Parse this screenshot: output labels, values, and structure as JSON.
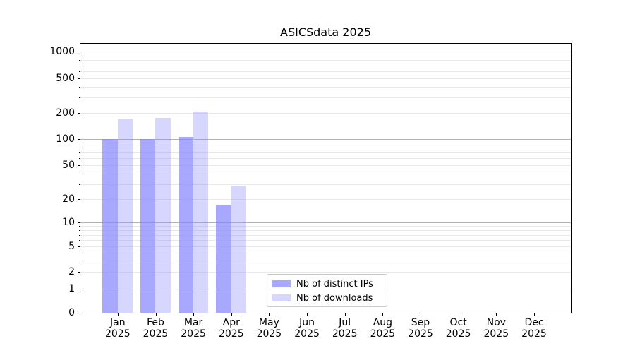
{
  "chart_data": {
    "type": "bar",
    "title": "ASICSdata 2025",
    "categories": [
      "Jan",
      "Feb",
      "Mar",
      "Apr",
      "May",
      "Jun",
      "Jul",
      "Aug",
      "Sep",
      "Oct",
      "Nov",
      "Dec"
    ],
    "x_year_label": "2025",
    "series": [
      {
        "name": "Nb of distinct IPs",
        "base_color": "#8888ff",
        "alpha": 0.73,
        "values": [
          100,
          100,
          106,
          17,
          null,
          null,
          null,
          null,
          null,
          null,
          null,
          null
        ]
      },
      {
        "name": "Nb of downloads",
        "base_color": "#8888ff",
        "alpha": 0.34,
        "values": [
          172,
          176,
          208,
          28,
          null,
          null,
          null,
          null,
          null,
          null,
          null,
          null
        ]
      }
    ],
    "yticks": [
      0,
      1,
      2,
      5,
      10,
      20,
      50,
      100,
      200,
      500,
      1000
    ],
    "yscale": "symlog",
    "ylim": [
      0,
      1200
    ],
    "grid": true,
    "major_grid_color": "#b2b2b2",
    "minor_grid_color": "#e8e8e8",
    "legend_position": "inside-bottom-center-left"
  }
}
